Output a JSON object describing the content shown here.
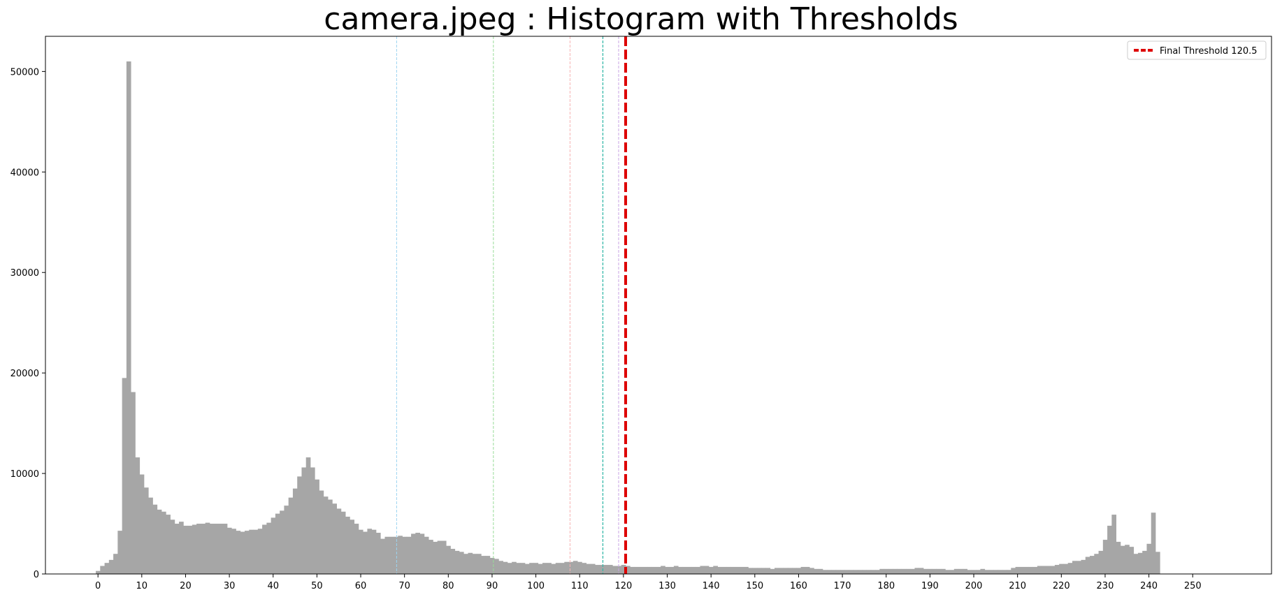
{
  "chart_data": {
    "type": "bar",
    "title": "camera.jpeg : Histogram with Thresholds",
    "xlabel": "",
    "ylabel": "",
    "xlim": [
      -12,
      268
    ],
    "ylim": [
      0,
      53500
    ],
    "x_ticks": [
      0,
      10,
      20,
      30,
      40,
      50,
      60,
      70,
      80,
      90,
      100,
      110,
      120,
      130,
      140,
      150,
      160,
      170,
      180,
      190,
      200,
      210,
      220,
      230,
      240,
      250
    ],
    "y_ticks": [
      0,
      10000,
      20000,
      30000,
      40000,
      50000
    ],
    "grid": false,
    "bar_color": "#a6a6a6",
    "bins": [
      [
        0,
        300
      ],
      [
        1,
        800
      ],
      [
        2,
        1100
      ],
      [
        3,
        1400
      ],
      [
        4,
        2000
      ],
      [
        5,
        4300
      ],
      [
        6,
        19500
      ],
      [
        7,
        51000
      ],
      [
        8,
        18100
      ],
      [
        9,
        11600
      ],
      [
        10,
        9900
      ],
      [
        11,
        8600
      ],
      [
        12,
        7600
      ],
      [
        13,
        6900
      ],
      [
        14,
        6400
      ],
      [
        15,
        6200
      ],
      [
        16,
        5900
      ],
      [
        17,
        5400
      ],
      [
        18,
        5000
      ],
      [
        19,
        5200
      ],
      [
        20,
        4800
      ],
      [
        21,
        4800
      ],
      [
        22,
        4900
      ],
      [
        23,
        5000
      ],
      [
        24,
        5000
      ],
      [
        25,
        5100
      ],
      [
        26,
        5000
      ],
      [
        27,
        5000
      ],
      [
        28,
        5000
      ],
      [
        29,
        5000
      ],
      [
        30,
        4600
      ],
      [
        31,
        4500
      ],
      [
        32,
        4300
      ],
      [
        33,
        4200
      ],
      [
        34,
        4300
      ],
      [
        35,
        4400
      ],
      [
        36,
        4400
      ],
      [
        37,
        4500
      ],
      [
        38,
        4900
      ],
      [
        39,
        5100
      ],
      [
        40,
        5600
      ],
      [
        41,
        6000
      ],
      [
        42,
        6300
      ],
      [
        43,
        6800
      ],
      [
        44,
        7600
      ],
      [
        45,
        8500
      ],
      [
        46,
        9700
      ],
      [
        47,
        10600
      ],
      [
        48,
        11600
      ],
      [
        49,
        10600
      ],
      [
        50,
        9400
      ],
      [
        51,
        8300
      ],
      [
        52,
        7700
      ],
      [
        53,
        7400
      ],
      [
        54,
        7000
      ],
      [
        55,
        6500
      ],
      [
        56,
        6200
      ],
      [
        57,
        5700
      ],
      [
        58,
        5400
      ],
      [
        59,
        5000
      ],
      [
        60,
        4400
      ],
      [
        61,
        4200
      ],
      [
        62,
        4500
      ],
      [
        63,
        4400
      ],
      [
        64,
        4100
      ],
      [
        65,
        3500
      ],
      [
        66,
        3700
      ],
      [
        67,
        3700
      ],
      [
        68,
        3700
      ],
      [
        69,
        3800
      ],
      [
        70,
        3700
      ],
      [
        71,
        3700
      ],
      [
        72,
        4000
      ],
      [
        73,
        4100
      ],
      [
        74,
        4000
      ],
      [
        75,
        3700
      ],
      [
        76,
        3400
      ],
      [
        77,
        3200
      ],
      [
        78,
        3300
      ],
      [
        79,
        3300
      ],
      [
        80,
        2800
      ],
      [
        81,
        2500
      ],
      [
        82,
        2300
      ],
      [
        83,
        2200
      ],
      [
        84,
        2000
      ],
      [
        85,
        2100
      ],
      [
        86,
        2000
      ],
      [
        87,
        2000
      ],
      [
        88,
        1800
      ],
      [
        89,
        1800
      ],
      [
        90,
        1600
      ],
      [
        91,
        1500
      ],
      [
        92,
        1300
      ],
      [
        93,
        1200
      ],
      [
        94,
        1100
      ],
      [
        95,
        1200
      ],
      [
        96,
        1100
      ],
      [
        97,
        1100
      ],
      [
        98,
        1000
      ],
      [
        99,
        1100
      ],
      [
        100,
        1100
      ],
      [
        101,
        1000
      ],
      [
        102,
        1100
      ],
      [
        103,
        1100
      ],
      [
        104,
        1000
      ],
      [
        105,
        1100
      ],
      [
        106,
        1100
      ],
      [
        107,
        1200
      ],
      [
        108,
        1200
      ],
      [
        109,
        1300
      ],
      [
        110,
        1200
      ],
      [
        111,
        1100
      ],
      [
        112,
        1000
      ],
      [
        113,
        1000
      ],
      [
        114,
        900
      ],
      [
        115,
        900
      ],
      [
        116,
        900
      ],
      [
        117,
        900
      ],
      [
        118,
        800
      ],
      [
        119,
        800
      ],
      [
        120,
        900
      ],
      [
        121,
        800
      ],
      [
        122,
        700
      ],
      [
        123,
        700
      ],
      [
        124,
        700
      ],
      [
        125,
        700
      ],
      [
        126,
        700
      ],
      [
        127,
        700
      ],
      [
        128,
        700
      ],
      [
        129,
        800
      ],
      [
        130,
        700
      ],
      [
        131,
        700
      ],
      [
        132,
        800
      ],
      [
        133,
        700
      ],
      [
        134,
        700
      ],
      [
        135,
        700
      ],
      [
        136,
        700
      ],
      [
        137,
        700
      ],
      [
        138,
        800
      ],
      [
        139,
        800
      ],
      [
        140,
        700
      ],
      [
        141,
        800
      ],
      [
        142,
        700
      ],
      [
        143,
        700
      ],
      [
        144,
        700
      ],
      [
        145,
        700
      ],
      [
        146,
        700
      ],
      [
        147,
        700
      ],
      [
        148,
        700
      ],
      [
        149,
        600
      ],
      [
        150,
        600
      ],
      [
        151,
        600
      ],
      [
        152,
        600
      ],
      [
        153,
        600
      ],
      [
        154,
        500
      ],
      [
        155,
        600
      ],
      [
        156,
        600
      ],
      [
        157,
        600
      ],
      [
        158,
        600
      ],
      [
        159,
        600
      ],
      [
        160,
        600
      ],
      [
        161,
        700
      ],
      [
        162,
        700
      ],
      [
        163,
        600
      ],
      [
        164,
        500
      ],
      [
        165,
        500
      ],
      [
        166,
        400
      ],
      [
        167,
        400
      ],
      [
        168,
        400
      ],
      [
        169,
        400
      ],
      [
        170,
        400
      ],
      [
        171,
        400
      ],
      [
        172,
        400
      ],
      [
        173,
        400
      ],
      [
        174,
        400
      ],
      [
        175,
        400
      ],
      [
        176,
        400
      ],
      [
        177,
        400
      ],
      [
        178,
        400
      ],
      [
        179,
        500
      ],
      [
        180,
        500
      ],
      [
        181,
        500
      ],
      [
        182,
        500
      ],
      [
        183,
        500
      ],
      [
        184,
        500
      ],
      [
        185,
        500
      ],
      [
        186,
        500
      ],
      [
        187,
        600
      ],
      [
        188,
        600
      ],
      [
        189,
        500
      ],
      [
        190,
        500
      ],
      [
        191,
        500
      ],
      [
        192,
        500
      ],
      [
        193,
        500
      ],
      [
        194,
        400
      ],
      [
        195,
        400
      ],
      [
        196,
        500
      ],
      [
        197,
        500
      ],
      [
        198,
        500
      ],
      [
        199,
        400
      ],
      [
        200,
        400
      ],
      [
        201,
        400
      ],
      [
        202,
        500
      ],
      [
        203,
        400
      ],
      [
        204,
        400
      ],
      [
        205,
        400
      ],
      [
        206,
        400
      ],
      [
        207,
        400
      ],
      [
        208,
        400
      ],
      [
        209,
        600
      ],
      [
        210,
        700
      ],
      [
        211,
        700
      ],
      [
        212,
        700
      ],
      [
        213,
        700
      ],
      [
        214,
        700
      ],
      [
        215,
        800
      ],
      [
        216,
        800
      ],
      [
        217,
        800
      ],
      [
        218,
        800
      ],
      [
        219,
        900
      ],
      [
        220,
        1000
      ],
      [
        221,
        1000
      ],
      [
        222,
        1100
      ],
      [
        223,
        1300
      ],
      [
        224,
        1300
      ],
      [
        225,
        1400
      ],
      [
        226,
        1700
      ],
      [
        227,
        1800
      ],
      [
        228,
        2000
      ],
      [
        229,
        2300
      ],
      [
        230,
        3400
      ],
      [
        231,
        4800
      ],
      [
        232,
        5900
      ],
      [
        233,
        3200
      ],
      [
        234,
        2800
      ],
      [
        235,
        2900
      ],
      [
        236,
        2700
      ],
      [
        237,
        2000
      ],
      [
        238,
        2100
      ],
      [
        239,
        2300
      ],
      [
        240,
        3000
      ],
      [
        241,
        6100
      ],
      [
        242,
        2200
      ]
    ],
    "threshold_lines": [
      {
        "x": 68.2,
        "color": "#9cd4f0",
        "width": 1,
        "dash": true
      },
      {
        "x": 90.3,
        "color": "#98dc98",
        "width": 1,
        "dash": true
      },
      {
        "x": 107.8,
        "color": "#f6b3b3",
        "width": 1,
        "dash": true
      },
      {
        "x": 115.3,
        "color": "#37b9a9",
        "width": 1.3,
        "dash": true
      },
      {
        "x": 118.9,
        "color": "#c8a4e6",
        "width": 1,
        "dash": true
      },
      {
        "x": 120.5,
        "color": "#dd0000",
        "width": 4,
        "dash": true,
        "final": true
      }
    ],
    "legend": {
      "position": "upper right",
      "entries": [
        {
          "label": "Final Threshold 120.5",
          "color": "#dd0000"
        }
      ]
    }
  }
}
